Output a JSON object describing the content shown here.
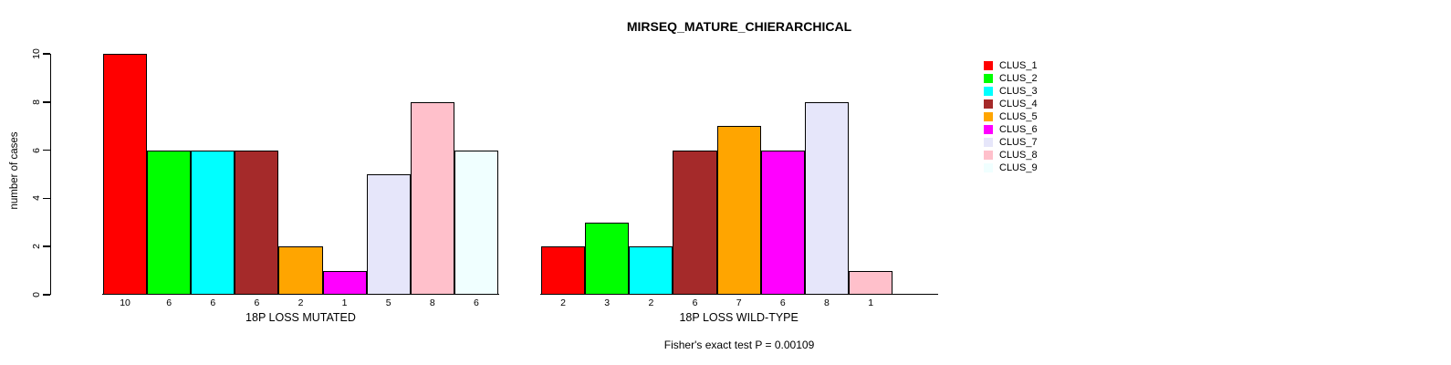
{
  "title": "MIRSEQ_MATURE_CHIERARCHICAL",
  "chart_data": {
    "type": "bar",
    "title": "MIRSEQ_MATURE_CHIERARCHICAL",
    "ylabel": "number of cases",
    "ylim": [
      0,
      10
    ],
    "y_ticks": [
      0,
      2,
      4,
      6,
      8,
      10
    ],
    "grid": false,
    "legend_position": "right",
    "clusters": [
      {
        "label": "CLUS_1",
        "color": "#FF0000"
      },
      {
        "label": "CLUS_2",
        "color": "#00FF00"
      },
      {
        "label": "CLUS_3",
        "color": "#00FFFF"
      },
      {
        "label": "CLUS_4",
        "color": "#A52A2A"
      },
      {
        "label": "CLUS_5",
        "color": "#FFA500"
      },
      {
        "label": "CLUS_6",
        "color": "#FF00FF"
      },
      {
        "label": "CLUS_7",
        "color": "#E6E6FA"
      },
      {
        "label": "CLUS_8",
        "color": "#FFC0CB"
      },
      {
        "label": "CLUS_9",
        "color": "#F0FFFF"
      }
    ],
    "groups": [
      {
        "xlabel": "18P LOSS MUTATED",
        "categories": [
          "CLUS_1",
          "CLUS_2",
          "CLUS_3",
          "CLUS_4",
          "CLUS_5",
          "CLUS_6",
          "CLUS_7",
          "CLUS_8",
          "CLUS_9"
        ],
        "values": [
          10,
          6,
          6,
          6,
          2,
          1,
          5,
          8,
          6
        ]
      },
      {
        "xlabel": "18P LOSS WILD-TYPE",
        "categories": [
          "CLUS_1",
          "CLUS_2",
          "CLUS_3",
          "CLUS_4",
          "CLUS_5",
          "CLUS_6",
          "CLUS_7",
          "CLUS_8"
        ],
        "values": [
          2,
          3,
          2,
          6,
          7,
          6,
          8,
          1
        ]
      }
    ],
    "annotation": "Fisher's exact test P = 0.00109"
  }
}
